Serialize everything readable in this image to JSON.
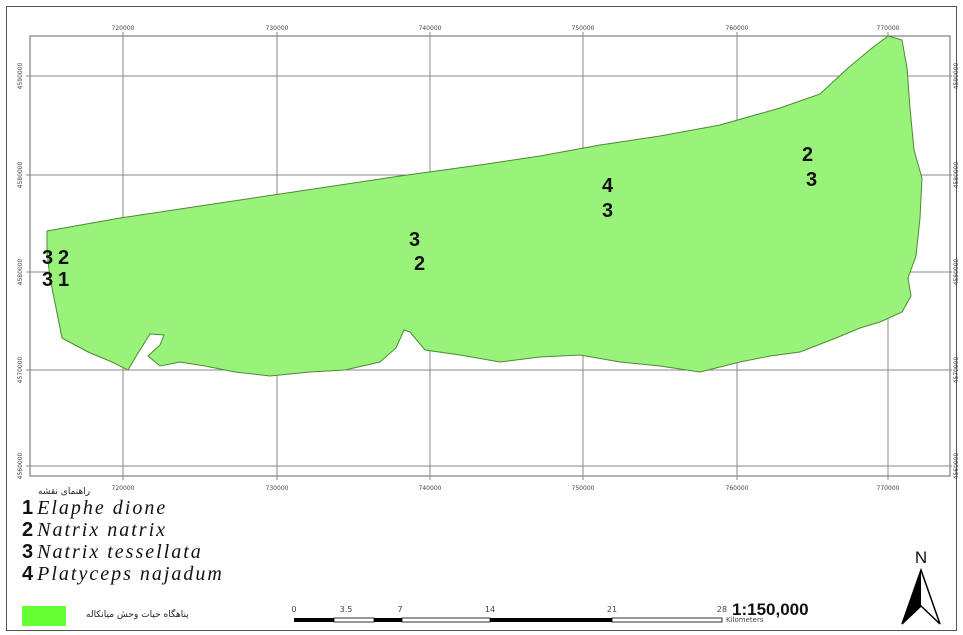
{
  "map": {
    "x_ticks": [
      "720000",
      "730000",
      "740000",
      "750000",
      "760000",
      "770000"
    ],
    "y_ticks": [
      "4590000",
      "4580000",
      "4580000",
      "4570000",
      "4560000"
    ],
    "polygon_color": "#99f27a",
    "polygon_outline": "#4d8a33",
    "sites": [
      {
        "label": "3"
      },
      {
        "label": "2"
      },
      {
        "label": "3"
      },
      {
        "label": "1"
      },
      {
        "label": "3"
      },
      {
        "label": "2"
      },
      {
        "label": "4"
      },
      {
        "label": "3"
      },
      {
        "label": "2"
      },
      {
        "label": "3"
      }
    ]
  },
  "legend": {
    "title": "راهنمای نقشه",
    "species": [
      {
        "num": "1",
        "name": "Elaphe dione"
      },
      {
        "num": "2",
        "name": "Natrix natrix"
      },
      {
        "num": "3",
        "name": "Natrix tessellata"
      },
      {
        "num": "4",
        "name": "Platyceps najadum"
      }
    ],
    "area_label": "پناهگاه حیات وحش میانکاله",
    "area_color": "#66ff33"
  },
  "scale_bar": {
    "ticks": [
      "0",
      "3.5",
      "7",
      "14",
      "21",
      "28"
    ],
    "unit": "Kilometers",
    "ratio": "1:150,000"
  },
  "north_arrow": {
    "label": "N"
  }
}
